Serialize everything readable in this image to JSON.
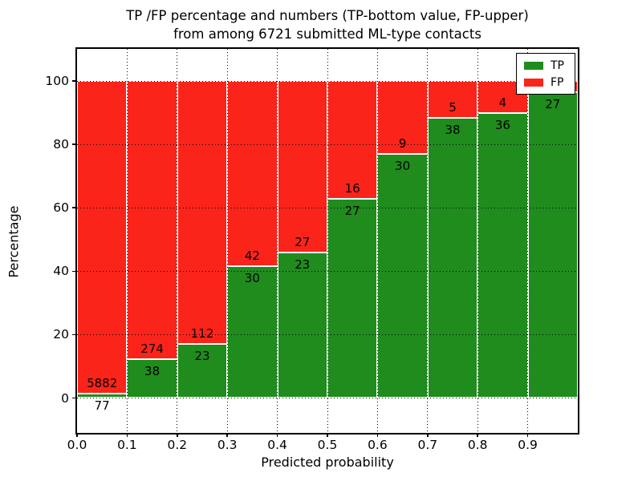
{
  "chart_data": {
    "type": "bar",
    "stacked": true,
    "orientation": "vertical",
    "title_line1": "TP /FP percentage and numbers (TP-bottom value, FP-upper)",
    "title_line2": "from among 6721 submitted ML-type contacts",
    "xlabel": "Predicted probability",
    "ylabel": "Percentage",
    "total_submitted_contacts": 6721,
    "xlim": [
      0.0,
      1.0
    ],
    "ylim": [
      -11,
      110
    ],
    "x_bin_edges": [
      0.0,
      0.1,
      0.2,
      0.3,
      0.4,
      0.5,
      0.6,
      0.7,
      0.8,
      0.9,
      1.0
    ],
    "x_tick_labels": [
      "0.0",
      "0.1",
      "0.2",
      "0.3",
      "0.4",
      "0.5",
      "0.6",
      "0.7",
      "0.8",
      "0.9"
    ],
    "y_tick_values": [
      0,
      20,
      40,
      60,
      80,
      100
    ],
    "y_tick_labels": [
      "0",
      "20",
      "40",
      "60",
      "80",
      "100"
    ],
    "grid": "dotted, on",
    "legend_position": "upper right",
    "bar_edge_color": "#ffffff",
    "series": [
      {
        "name": "TP",
        "color": "#1f8c1d",
        "counts": [
          77,
          38,
          23,
          30,
          23,
          27,
          30,
          38,
          36,
          27
        ],
        "percent": [
          1.3,
          12.2,
          17.0,
          41.7,
          46.0,
          62.8,
          76.9,
          88.4,
          90.0,
          96.4
        ]
      },
      {
        "name": "FP",
        "color": "#fa241a",
        "counts": [
          5882,
          274,
          112,
          42,
          27,
          16,
          9,
          5,
          4,
          null
        ],
        "percent": [
          98.7,
          87.8,
          83.0,
          58.3,
          54.0,
          37.2,
          23.1,
          11.6,
          10.0,
          3.6
        ]
      }
    ],
    "note": "FP count label of the last bin is hidden behind the legend"
  }
}
